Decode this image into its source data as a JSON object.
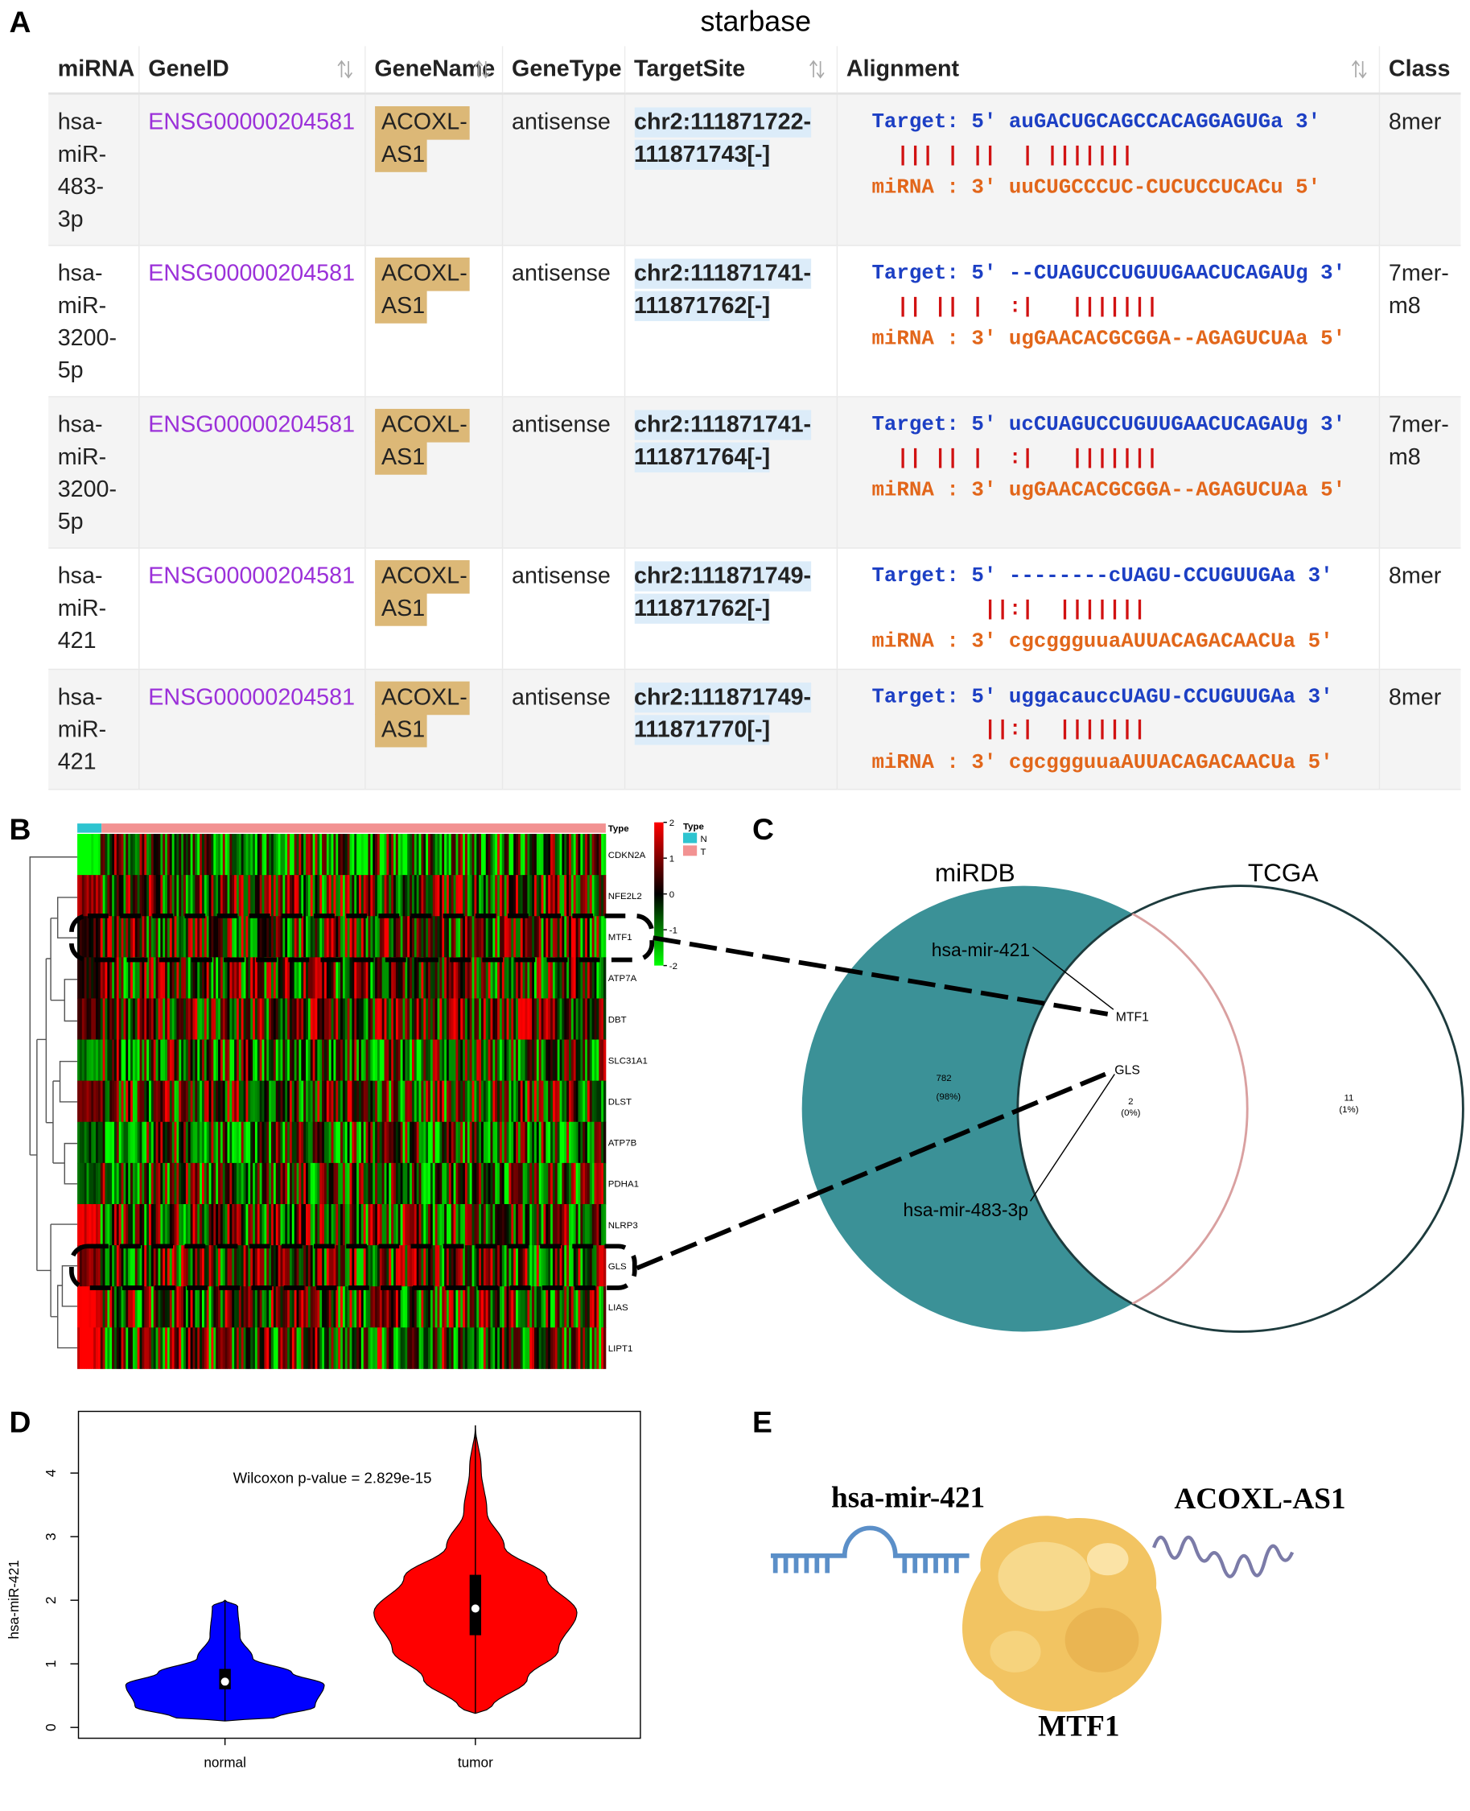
{
  "panels": [
    "A",
    "B",
    "C",
    "D",
    "E"
  ],
  "table": {
    "title": "starbase",
    "headers": [
      "miRNA",
      "GeneID",
      "GeneName",
      "GeneType",
      "TargetSite",
      "Alignment",
      "Class"
    ],
    "rows": [
      [
        "hsa-miR-483-3p",
        "ENSG00000204581",
        "ACOXL-AS1",
        "antisense",
        "chr2:111871722-111871743[-]",
        [
          "Target: 5' auGACUGCAGCCACAGGAGUGa 3'",
          "  ||| | ||  | |||||||",
          "miRNA : 3' uuCUGCCCUC-CUCUCCUCACu 5'"
        ],
        "8mer"
      ],
      [
        "hsa-miR-3200-5p",
        "ENSG00000204581",
        "ACOXL-AS1",
        "antisense",
        "chr2:111871741-111871762[-]",
        [
          "Target: 5' --CUAGUCCUGUUGAACUCAGAUg 3'",
          "  || || |  :|   |||||||",
          "miRNA : 3' ugGAACACGCGGA--AGAGUCUAa 5'"
        ],
        "7mer-m8"
      ],
      [
        "hsa-miR-3200-5p",
        "ENSG00000204581",
        "ACOXL-AS1",
        "antisense",
        "chr2:111871741-111871764[-]",
        [
          "Target: 5' ucCUAGUCCUGUUGAACUCAGAUg 3'",
          "  || || |  :|   |||||||",
          "miRNA : 3' ugGAACACGCGGA--AGAGUCUAa 5'"
        ],
        "7mer-m8"
      ],
      [
        "hsa-miR-421",
        "ENSG00000204581",
        "ACOXL-AS1",
        "antisense",
        "chr2:111871749-111871762[-]",
        [
          "Target: 5' --------cUAGU-CCUGUUGAa 3'",
          "         ||:|  |||||||",
          "miRNA : 3' cgcggguuaAUUACAGACAACUa 5'"
        ],
        "8mer"
      ],
      [
        "hsa-miR-421",
        "ENSG00000204581",
        "ACOXL-AS1",
        "antisense",
        "chr2:111871749-111871770[-]",
        [
          "Target: 5' uggacauccUAGU-CCUGUUGAa 3'",
          "         ||:|  |||||||",
          "miRNA : 3' cgcggguuaAUUACAGACAACUa 5'"
        ],
        "8mer"
      ]
    ]
  },
  "heatmap": {
    "type_label": "Type",
    "genes": [
      "CDKN2A",
      "NFE2L2",
      "MTF1",
      "ATP7A",
      "DBT",
      "SLC31A1",
      "DLST",
      "ATP7B",
      "PDHA1",
      "NLRP3",
      "GLS",
      "LIAS",
      "LIPT1"
    ],
    "legend_title": "Type",
    "groups": [
      "N",
      "T"
    ],
    "group_colors": [
      "#2ec4d0",
      "#f29292"
    ],
    "scale_ticks": [
      2,
      1,
      0,
      -1,
      -2
    ],
    "scale_colors": [
      "#ff0000",
      "#000000",
      "#00ff00"
    ]
  },
  "venn": {
    "sets": [
      "miRDB",
      "TCGA"
    ],
    "set_colors": [
      "#3b9197",
      "#ffffff"
    ],
    "counts": [
      782,
      2,
      11
    ],
    "percents": [
      "(98%)",
      "(0%)",
      "(1%)"
    ],
    "genes": [
      "MTF1",
      "GLS"
    ],
    "mirnas": [
      "hsa-mir-421",
      "hsa-mir-483-3p"
    ]
  },
  "chart_data": {
    "type": "violin",
    "ylabel": "hsa-miR-421",
    "annotation": "Wilcoxon  p-value = 2.829e-15",
    "categories": [
      "normal",
      "tumor"
    ],
    "colors": [
      "#0000ff",
      "#ff0000"
    ],
    "min": [
      0.1,
      0.22
    ],
    "q1": [
      0.6,
      1.45
    ],
    "median": [
      0.72,
      1.87
    ],
    "q3": [
      0.92,
      2.4
    ],
    "max": [
      2.0,
      4.75
    ],
    "ylim": [
      -0.17,
      4.97
    ],
    "yticks": [
      0,
      1,
      2,
      3,
      4
    ]
  },
  "diagram": {
    "mirna": "hsa-mir-421",
    "lncrna": "ACOXL-AS1",
    "protein": "MTF1"
  }
}
